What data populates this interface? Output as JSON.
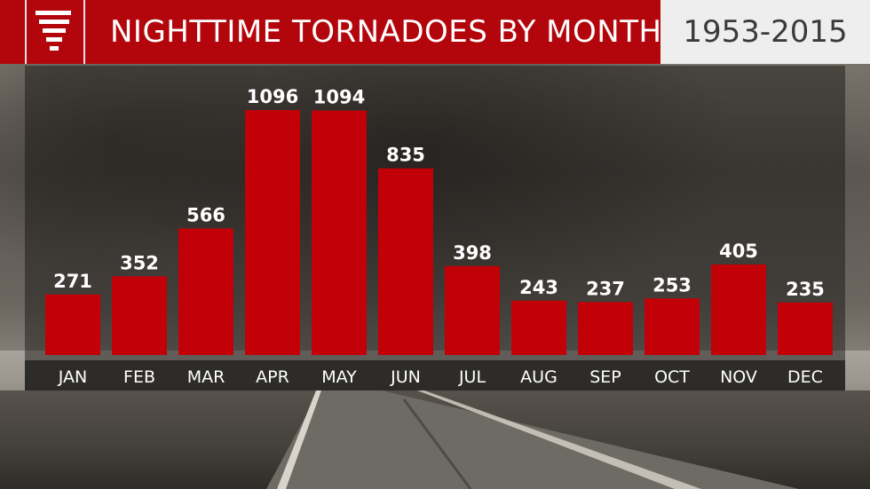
{
  "header": {
    "title": "NIGHTTIME TORNADOES BY MONTH",
    "years": "1953-2015"
  },
  "logo": {
    "icon": "tornado-icon"
  },
  "colors": {
    "bar": "#c20008",
    "header": "#b3060c",
    "year_box": "#eeeeee"
  },
  "chart_data": {
    "type": "bar",
    "categories": [
      "JAN",
      "FEB",
      "MAR",
      "APR",
      "MAY",
      "JUN",
      "JUL",
      "AUG",
      "SEP",
      "OCT",
      "NOV",
      "DEC"
    ],
    "values": [
      271,
      352,
      566,
      1096,
      1094,
      835,
      398,
      243,
      237,
      253,
      405,
      235
    ],
    "title": "NIGHTTIME TORNADOES BY MONTH",
    "subtitle": "1953-2015",
    "xlabel": "",
    "ylabel": "",
    "ylim": [
      0,
      1100
    ],
    "grid": false,
    "legend": "none"
  }
}
